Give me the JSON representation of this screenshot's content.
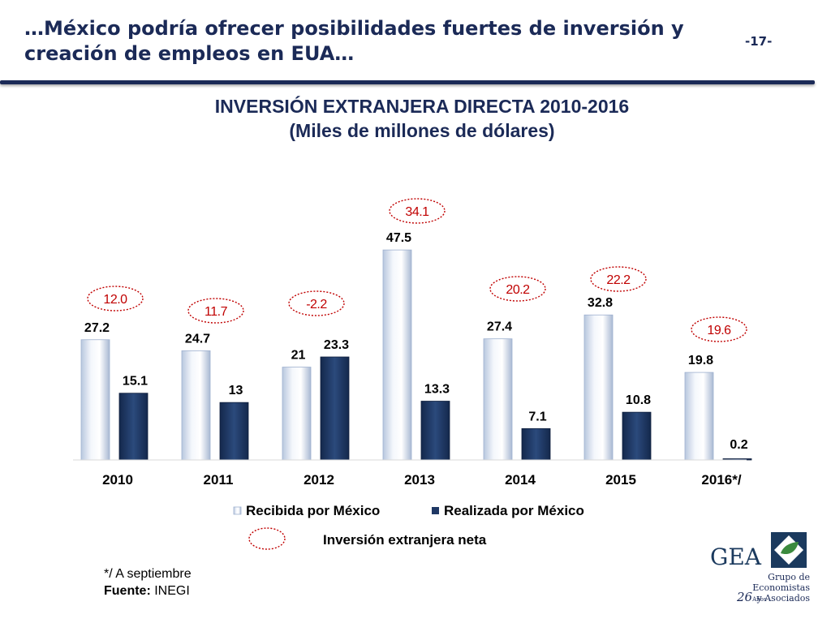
{
  "header": {
    "title": "…México podría ofrecer posibilidades fuertes de inversión y creación de empleos en EUA…",
    "page_number": "-17-"
  },
  "chart_data": {
    "type": "bar",
    "title": "INVERSIÓN EXTRANJERA DIRECTA 2010-2016",
    "subtitle": "(Miles de millones de dólares)",
    "categories": [
      "2010",
      "2011",
      "2012",
      "2013",
      "2014",
      "2015",
      "2016*/"
    ],
    "series": [
      {
        "name": "Recibida por México",
        "values": [
          27.2,
          24.7,
          21,
          47.5,
          27.4,
          32.8,
          19.8
        ],
        "labels": [
          "27.2",
          "24.7",
          "21",
          "47.5",
          "27.4",
          "32.8",
          "19.8"
        ],
        "color": "#dce6f4"
      },
      {
        "name": "Realizada por México",
        "values": [
          15.1,
          13,
          23.3,
          13.3,
          7.1,
          10.8,
          0.2
        ],
        "labels": [
          "15.1",
          "13",
          "23.3",
          "13.3",
          "7.1",
          "10.8",
          "0.2"
        ],
        "color": "#1f3864"
      }
    ],
    "net_investment": {
      "name": "Inversión extranjera neta",
      "values": [
        12.0,
        11.7,
        -2.2,
        34.1,
        20.2,
        22.2,
        19.6
      ],
      "labels": [
        "12.0",
        "11.7",
        "-2.2",
        "34.1",
        "20.2",
        "22.2",
        "19.6"
      ],
      "color": "#c00000"
    },
    "ylim": [
      0,
      50
    ],
    "xlabel": "",
    "ylabel": "",
    "grid": false,
    "legend": "bottom"
  },
  "footnote": {
    "note": "*/ A septiembre",
    "source_label": "Fuente:",
    "source_value": "INEGI"
  },
  "logo": {
    "name": "GEA",
    "line1": "Grupo de Economistas",
    "line2": "y Asociados",
    "years": "26",
    "years_label": "Años"
  }
}
